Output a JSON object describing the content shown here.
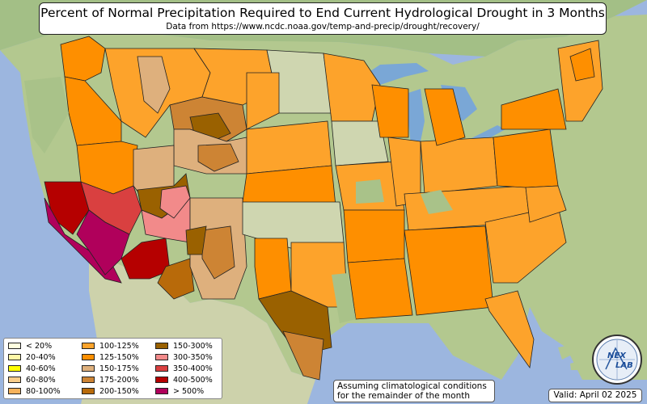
{
  "title": "Percent of Normal Precipitation Required to End Current Hydrological Drought in 3 Months",
  "subtitle": "Data from https://www.ncdc.noaa.gov/temp-and-precip/drought/recovery/",
  "legend": [
    {
      "label": "< 20%",
      "color": "#ffffe0"
    },
    {
      "label": "20-40%",
      "color": "#fff8a8"
    },
    {
      "label": "40-60%",
      "color": "#ffff00"
    },
    {
      "label": "60-80%",
      "color": "#f9cd8a"
    },
    {
      "label": "80-100%",
      "color": "#f7b25a"
    },
    {
      "label": "100-125%",
      "color": "#fda32b"
    },
    {
      "label": "125-150%",
      "color": "#fe8f00"
    },
    {
      "label": "150-175%",
      "color": "#deb07d"
    },
    {
      "label": "175-200%",
      "color": "#cd8434"
    },
    {
      "label": "200-150%",
      "color": "#b86a0a"
    },
    {
      "label": "150-300%",
      "color": "#9a6100"
    },
    {
      "label": "300-350%",
      "color": "#f28a8a"
    },
    {
      "label": "350-400%",
      "color": "#d94040"
    },
    {
      "label": "400-500%",
      "color": "#b50000"
    },
    {
      "label": "> 500%",
      "color": "#b0005b"
    }
  ],
  "note": {
    "line1": "Assuming climatological conditions",
    "line2": "for the remainder of the month"
  },
  "valid": "Valid: April 02 2025",
  "logo": {
    "text_top": "NEX",
    "text_bottom": "LAB"
  },
  "colors": {
    "ocean": "#9cb6df",
    "land_green": "#a9c289",
    "land_light": "#cfd6b0",
    "lakes": "#7aa7d6"
  }
}
